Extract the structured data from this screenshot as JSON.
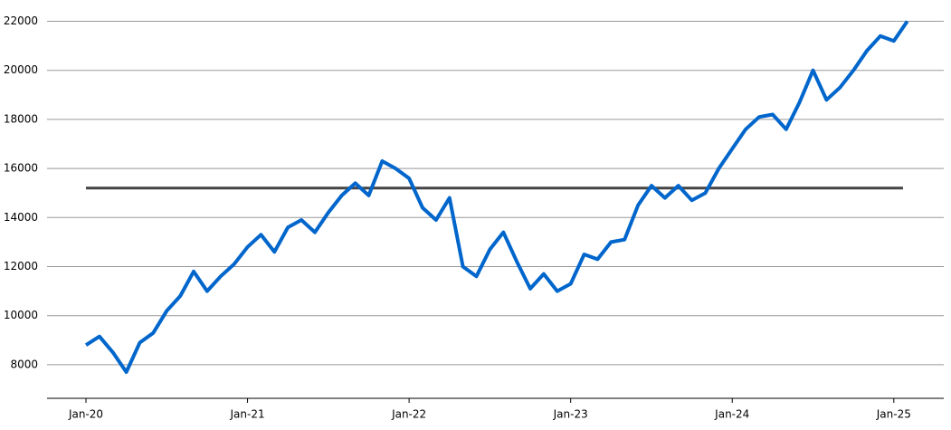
{
  "chart_data": {
    "type": "line",
    "categories": [
      "Jan-20",
      null,
      null,
      null,
      null,
      null,
      null,
      null,
      null,
      null,
      null,
      null,
      "Jan-21",
      null,
      null,
      null,
      null,
      null,
      null,
      null,
      null,
      null,
      null,
      null,
      "Jan-22",
      null,
      null,
      null,
      null,
      null,
      null,
      null,
      null,
      null,
      null,
      null,
      "Jan-23",
      null,
      null,
      null,
      null,
      null,
      null,
      null,
      null,
      null,
      null,
      null,
      "Jan-24",
      null,
      null,
      null,
      null,
      null,
      null,
      null,
      null,
      null,
      null,
      null,
      "Jan-25",
      null
    ],
    "values": [
      8800,
      9150,
      8500,
      7700,
      8900,
      9300,
      10200,
      10800,
      11800,
      11000,
      11600,
      12100,
      12800,
      13300,
      12600,
      13600,
      13900,
      13400,
      14200,
      14900,
      15400,
      14900,
      16300,
      16000,
      15600,
      14400,
      13900,
      14800,
      12000,
      11600,
      12700,
      13400,
      12200,
      11100,
      11700,
      11000,
      11300,
      12500,
      12300,
      13000,
      13100,
      14500,
      15300,
      14800,
      15300,
      14700,
      15000,
      16000,
      16800,
      17600,
      18100,
      18200,
      17600,
      18700,
      20000,
      18800,
      19300,
      20000,
      20800,
      21400,
      21200,
      22000
    ],
    "color": "#0066cc",
    "hline": {
      "value": 15200,
      "color": "#444444"
    },
    "ylim": [
      6630,
      22500
    ],
    "yticks": [
      8000,
      10000,
      12000,
      14000,
      16000,
      18000,
      20000,
      22000
    ],
    "grid": true
  }
}
